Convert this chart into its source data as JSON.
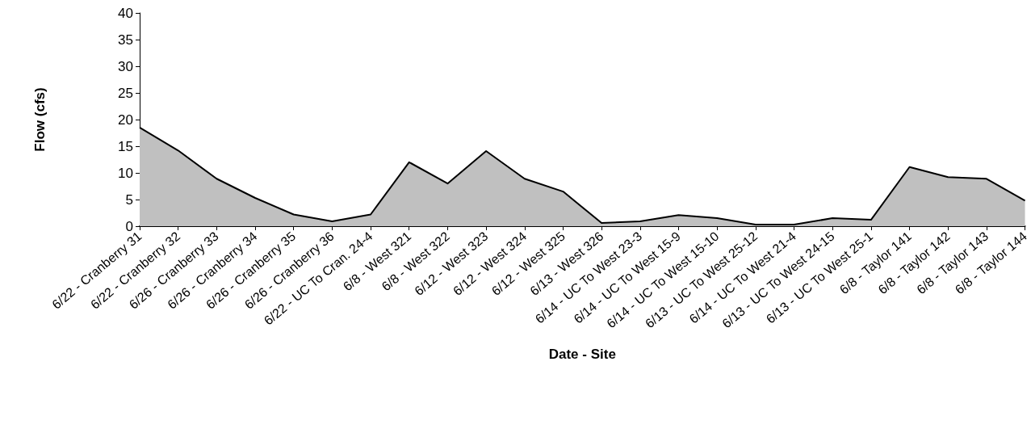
{
  "chart_data": {
    "type": "area",
    "xlabel": "Date - Site",
    "ylabel": "Flow (cfs)",
    "categories": [
      "6/22 - Cranberry 31",
      "6/22 - Cranberry 32",
      "6/26 - Cranberry 33",
      "6/26 - Cranberry 34",
      "6/26 - Cranberry 35",
      "6/26 - Cranberry 36",
      "6/22 - UC To Cran. 24-4",
      "6/8 - West 321",
      "6/8 - West 322",
      "6/12 - West 323",
      "6/12 - West 324",
      "6/12 - West 325",
      "6/13 - West 326",
      "6/14 - UC To West 23-3",
      "6/14 - UC To West 15-9",
      "6/14 - UC To West 15-10",
      "6/13 - UC To West 25-12",
      "6/14 - UC To West 21-4",
      "6/13 - UC To West 24-15",
      "6/13 - UC To West 25-1",
      "6/8 - Taylor 141",
      "6/8 - Taylor 142",
      "6/8 - Taylor 143",
      "6/8 - Taylor 144"
    ],
    "values": [
      18.5,
      14.2,
      8.9,
      5.3,
      2.2,
      0.9,
      2.2,
      12,
      8,
      14.1,
      8.9,
      6.5,
      0.6,
      0.9,
      2.1,
      1.5,
      0.3,
      0.3,
      1.5,
      1.2,
      11.1,
      9.2,
      8.9,
      4.8
    ],
    "color": "#c0c0c0",
    "ylim": [
      0,
      40
    ],
    "yticks": [
      0,
      5,
      10,
      15,
      20,
      25,
      30,
      35,
      40
    ],
    "grid": false
  }
}
